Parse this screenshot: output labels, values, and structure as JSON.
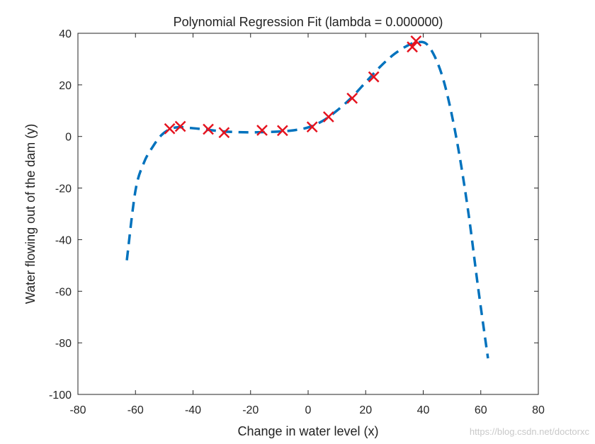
{
  "chart_data": {
    "type": "scatter",
    "title": "Polynomial Regression Fit (lambda = 0.000000)",
    "xlabel": "Change in water level (x)",
    "ylabel": "Water flowing out of the dam (y)",
    "xlim": [
      -80,
      80
    ],
    "ylim": [
      -100,
      40
    ],
    "xticks": [
      -80,
      -60,
      -40,
      -20,
      0,
      20,
      40,
      60,
      80
    ],
    "yticks": [
      -100,
      -80,
      -60,
      -40,
      -20,
      0,
      20,
      40
    ],
    "grid": false,
    "legend": "none",
    "series": [
      {
        "kind": "markers",
        "marker": "x",
        "color": "#e5131f",
        "x": [
          -48.1,
          -44.4,
          -34.7,
          -29.2,
          -16.0,
          -8.9,
          1.4,
          7.1,
          15.3,
          22.8,
          36.2,
          37.5
        ],
        "y": [
          3.0,
          3.9,
          2.8,
          1.5,
          2.4,
          2.3,
          3.7,
          7.6,
          14.8,
          23.1,
          34.7,
          37.0
        ]
      },
      {
        "kind": "line",
        "style": "dashed",
        "color": "#0072bd",
        "x": [
          -63,
          -60,
          -57,
          -54,
          -51,
          -48,
          -45,
          -40,
          -35,
          -30,
          -25,
          -20,
          -15,
          -10,
          -5,
          0,
          5,
          10,
          15,
          20,
          25,
          30,
          35,
          38,
          41,
          44,
          47,
          50,
          53,
          56,
          59,
          62.5
        ],
        "y": [
          -48,
          -21,
          -10,
          -4,
          0.5,
          2.8,
          3.6,
          3.2,
          2.6,
          2.0,
          1.7,
          1.6,
          1.7,
          1.9,
          2.4,
          3.5,
          6.0,
          10.0,
          15.0,
          21.0,
          27.0,
          32.0,
          35.5,
          36.5,
          36.0,
          31.0,
          22.0,
          8.0,
          -10.0,
          -32.0,
          -58.0,
          -86.0
        ]
      }
    ]
  },
  "watermark": "https://blog.csdn.net/doctorxc"
}
